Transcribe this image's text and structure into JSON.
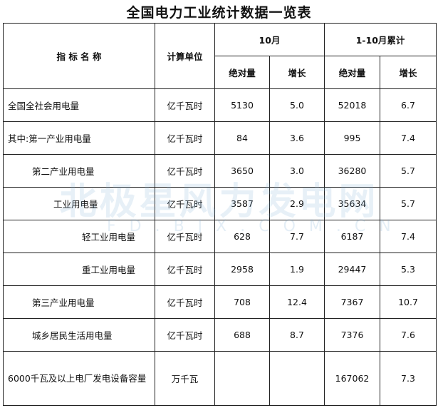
{
  "title": "全国电力工业统计数据一览表",
  "header": {
    "name": "指 标 名 称",
    "unit": "计算单位",
    "month": "10月",
    "cumulative": "1-10月累计",
    "abs": "绝对量",
    "growth": "增长"
  },
  "rows": [
    {
      "name": "全国全社会用电量",
      "indent": 0,
      "unit": "亿千瓦时",
      "m_abs": "5130",
      "m_gr": "5.0",
      "c_abs": "52018",
      "c_gr": "6.7"
    },
    {
      "name": "其中:第一产业用电量",
      "indent": 0,
      "unit": "亿千瓦时",
      "m_abs": "84",
      "m_gr": "3.6",
      "c_abs": "995",
      "c_gr": "7.4"
    },
    {
      "name": "第二产业用电量",
      "indent": 1,
      "unit": "亿千瓦时",
      "m_abs": "3650",
      "m_gr": "3.0",
      "c_abs": "36280",
      "c_gr": "5.7"
    },
    {
      "name": "工业用电量",
      "indent": 2,
      "unit": "亿千瓦时",
      "m_abs": "3587",
      "m_gr": "2.9",
      "c_abs": "35634",
      "c_gr": "5.7"
    },
    {
      "name": "轻工业用电量",
      "indent": 3,
      "unit": "亿千瓦时",
      "m_abs": "628",
      "m_gr": "7.7",
      "c_abs": "6187",
      "c_gr": "7.4"
    },
    {
      "name": "重工业用电量",
      "indent": 3,
      "unit": "亿千瓦时",
      "m_abs": "2958",
      "m_gr": "1.9",
      "c_abs": "29447",
      "c_gr": "5.3"
    },
    {
      "name": "第三产业用电量",
      "indent": 1,
      "unit": "亿千瓦时",
      "m_abs": "708",
      "m_gr": "12.4",
      "c_abs": "7367",
      "c_gr": "10.7"
    },
    {
      "name": "城乡居民生活用电量",
      "indent": 1,
      "unit": "亿千瓦时",
      "m_abs": "688",
      "m_gr": "8.7",
      "c_abs": "7376",
      "c_gr": "7.6"
    },
    {
      "name": "6000千瓦及以上电厂发电设备容量",
      "indent": 0,
      "unit": "万千瓦",
      "m_abs": "",
      "m_gr": "",
      "c_abs": "167062",
      "c_gr": "7.3"
    }
  ],
  "watermark": {
    "text": "北极星风力发电网",
    "url": "FD.BJX.COM.CN"
  }
}
